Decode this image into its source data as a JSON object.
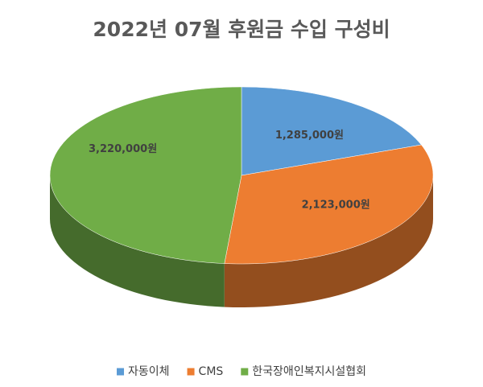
{
  "chart_data": {
    "type": "pie3d",
    "title": "2022년 07월 후원금 수입 구성비",
    "categories": [
      "자동이체",
      "CMS",
      "한국장애인복지시설협회"
    ],
    "values": [
      1285000,
      2123000,
      3220000
    ],
    "value_labels": [
      "1,285,000원",
      "2,123,000원",
      "3,220,000원"
    ],
    "colors": [
      "#5b9bd5",
      "#ed7d31",
      "#70ad47"
    ],
    "legend": "bottom"
  }
}
